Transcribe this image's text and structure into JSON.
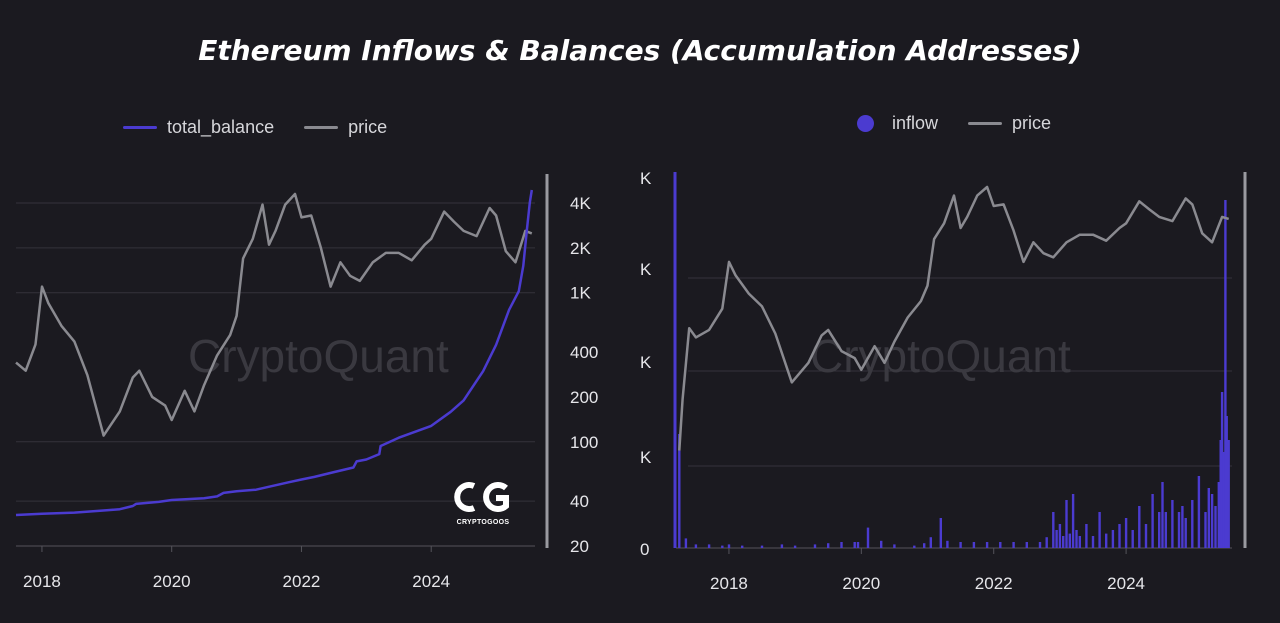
{
  "title": "Ethereum Inflows & Balances (Accumulation Addresses)",
  "colors": {
    "background": "#1b1a20",
    "balance": "#4b3bd0",
    "inflow": "#4b3bd0",
    "price": "#8a8a90",
    "axis": "#9a9aa0",
    "grid": "#34333b"
  },
  "watermark": "CryptoQuant",
  "logo": {
    "mark": "CG",
    "text": "CRYPTOGOOS"
  },
  "chart_data": [
    {
      "type": "line",
      "legend": [
        "total_balance",
        "price"
      ],
      "x_ticks": [
        "2018",
        "2020",
        "2022",
        "2024"
      ],
      "x_range": [
        2017.6,
        2025.6
      ],
      "y_scale": "log",
      "y_ticks": [
        "4K",
        "2K",
        "1K",
        "400",
        "200",
        "100",
        "40",
        "20"
      ],
      "y_tick_values": [
        4000,
        2000,
        1000,
        400,
        200,
        100,
        40,
        20
      ],
      "series": [
        {
          "name": "price",
          "x": [
            2017.6,
            2017.75,
            2017.9,
            2018.0,
            2018.1,
            2018.3,
            2018.5,
            2018.7,
            2018.95,
            2019.2,
            2019.4,
            2019.5,
            2019.7,
            2019.9,
            2020.0,
            2020.2,
            2020.35,
            2020.5,
            2020.7,
            2020.9,
            2021.0,
            2021.1,
            2021.25,
            2021.4,
            2021.5,
            2021.6,
            2021.75,
            2021.9,
            2022.0,
            2022.15,
            2022.3,
            2022.45,
            2022.6,
            2022.75,
            2022.9,
            2023.1,
            2023.3,
            2023.5,
            2023.7,
            2023.9,
            2024.0,
            2024.2,
            2024.35,
            2024.5,
            2024.7,
            2024.9,
            2025.0,
            2025.15,
            2025.3,
            2025.45,
            2025.55
          ],
          "values": [
            340,
            300,
            450,
            1100,
            850,
            600,
            470,
            280,
            110,
            160,
            270,
            300,
            200,
            175,
            140,
            220,
            160,
            240,
            380,
            520,
            700,
            1700,
            2300,
            3900,
            2100,
            2600,
            3900,
            4600,
            3200,
            3300,
            2000,
            1100,
            1600,
            1300,
            1200,
            1600,
            1850,
            1850,
            1650,
            2100,
            2300,
            3500,
            3000,
            2600,
            2400,
            3700,
            3300,
            1900,
            1600,
            2600,
            2500
          ]
        },
        {
          "name": "total_balance",
          "x": [
            2017.6,
            2018.0,
            2018.5,
            2019.0,
            2019.2,
            2019.4,
            2019.45,
            2019.8,
            2020.0,
            2020.5,
            2020.7,
            2020.8,
            2021.0,
            2021.3,
            2021.8,
            2022.0,
            2022.2,
            2022.5,
            2022.8,
            2022.85,
            2023.0,
            2023.2,
            2023.22,
            2023.5,
            2024.0,
            2024.3,
            2024.5,
            2024.8,
            2025.0,
            2025.2,
            2025.35,
            2025.42,
            2025.47,
            2025.52,
            2025.55
          ],
          "values": [
            24,
            24.5,
            25,
            26,
            26.5,
            28,
            29,
            30,
            31,
            32,
            33,
            35,
            36,
            37,
            42,
            44,
            46,
            50,
            54,
            60,
            62,
            68,
            78,
            90,
            110,
            140,
            170,
            280,
            440,
            800,
            1100,
            1700,
            3000,
            5000,
            6200
          ]
        }
      ]
    },
    {
      "type": "bar+line",
      "legend": [
        "inflow",
        "price"
      ],
      "x_ticks": [
        "2018",
        "2020",
        "2022",
        "2024"
      ],
      "x_range": [
        2017.2,
        2025.6
      ],
      "y_ticks": [
        "K",
        "K",
        "K",
        "K",
        "0"
      ],
      "series": [
        {
          "name": "price",
          "x": [
            2017.25,
            2017.3,
            2017.4,
            2017.5,
            2017.7,
            2017.9,
            2018.0,
            2018.1,
            2018.3,
            2018.5,
            2018.7,
            2018.95,
            2019.2,
            2019.4,
            2019.5,
            2019.7,
            2019.9,
            2020.0,
            2020.2,
            2020.35,
            2020.5,
            2020.7,
            2020.9,
            2021.0,
            2021.1,
            2021.25,
            2021.4,
            2021.5,
            2021.6,
            2021.75,
            2021.9,
            2022.0,
            2022.15,
            2022.3,
            2022.45,
            2022.6,
            2022.75,
            2022.9,
            2023.1,
            2023.3,
            2023.5,
            2023.7,
            2023.9,
            2024.0,
            2024.2,
            2024.35,
            2024.5,
            2024.7,
            2024.9,
            2025.0,
            2025.15,
            2025.3,
            2025.45,
            2025.55
          ],
          "values": [
            30,
            80,
            310,
            260,
            300,
            450,
            1100,
            850,
            600,
            470,
            280,
            110,
            160,
            270,
            300,
            200,
            175,
            140,
            220,
            160,
            240,
            380,
            520,
            700,
            1700,
            2300,
            3900,
            2100,
            2600,
            3900,
            4600,
            3200,
            3300,
            2000,
            1100,
            1600,
            1300,
            1200,
            1600,
            1850,
            1850,
            1650,
            2100,
            2300,
            3500,
            3000,
            2600,
            2400,
            3700,
            3300,
            1900,
            1600,
            2600,
            2500
          ]
        },
        {
          "name": "inflow",
          "x": [
            2017.25,
            2017.35,
            2017.5,
            2017.7,
            2017.9,
            2018.0,
            2018.2,
            2018.5,
            2018.8,
            2019.0,
            2019.3,
            2019.5,
            2019.7,
            2019.9,
            2019.95,
            2020.1,
            2020.3,
            2020.5,
            2020.8,
            2020.95,
            2021.05,
            2021.2,
            2021.3,
            2021.5,
            2021.7,
            2021.9,
            2022.1,
            2022.3,
            2022.5,
            2022.7,
            2022.8,
            2022.9,
            2022.95,
            2023.0,
            2023.05,
            2023.1,
            2023.15,
            2023.2,
            2023.25,
            2023.3,
            2023.4,
            2023.5,
            2023.6,
            2023.7,
            2023.8,
            2023.9,
            2024.0,
            2024.1,
            2024.2,
            2024.3,
            2024.4,
            2024.5,
            2024.55,
            2024.6,
            2024.7,
            2024.8,
            2024.85,
            2024.9,
            2025.0,
            2025.1,
            2025.2,
            2025.25,
            2025.3,
            2025.35,
            2025.4,
            2025.43,
            2025.45,
            2025.47,
            2025.5,
            2025.52,
            2025.55
          ],
          "values": [
            0.95,
            0.08,
            0.03,
            0.03,
            0.02,
            0.03,
            0.02,
            0.02,
            0.03,
            0.02,
            0.03,
            0.04,
            0.05,
            0.05,
            0.05,
            0.17,
            0.06,
            0.03,
            0.02,
            0.04,
            0.09,
            0.25,
            0.06,
            0.05,
            0.05,
            0.05,
            0.05,
            0.05,
            0.05,
            0.05,
            0.09,
            0.3,
            0.15,
            0.2,
            0.1,
            0.4,
            0.12,
            0.45,
            0.15,
            0.1,
            0.2,
            0.1,
            0.3,
            0.12,
            0.15,
            0.2,
            0.25,
            0.15,
            0.35,
            0.2,
            0.45,
            0.3,
            0.55,
            0.3,
            0.4,
            0.3,
            0.35,
            0.25,
            0.4,
            0.6,
            0.3,
            0.5,
            0.45,
            0.35,
            0.55,
            0.9,
            1.3,
            0.8,
            2.9,
            1.1,
            0.9
          ]
        }
      ]
    }
  ]
}
